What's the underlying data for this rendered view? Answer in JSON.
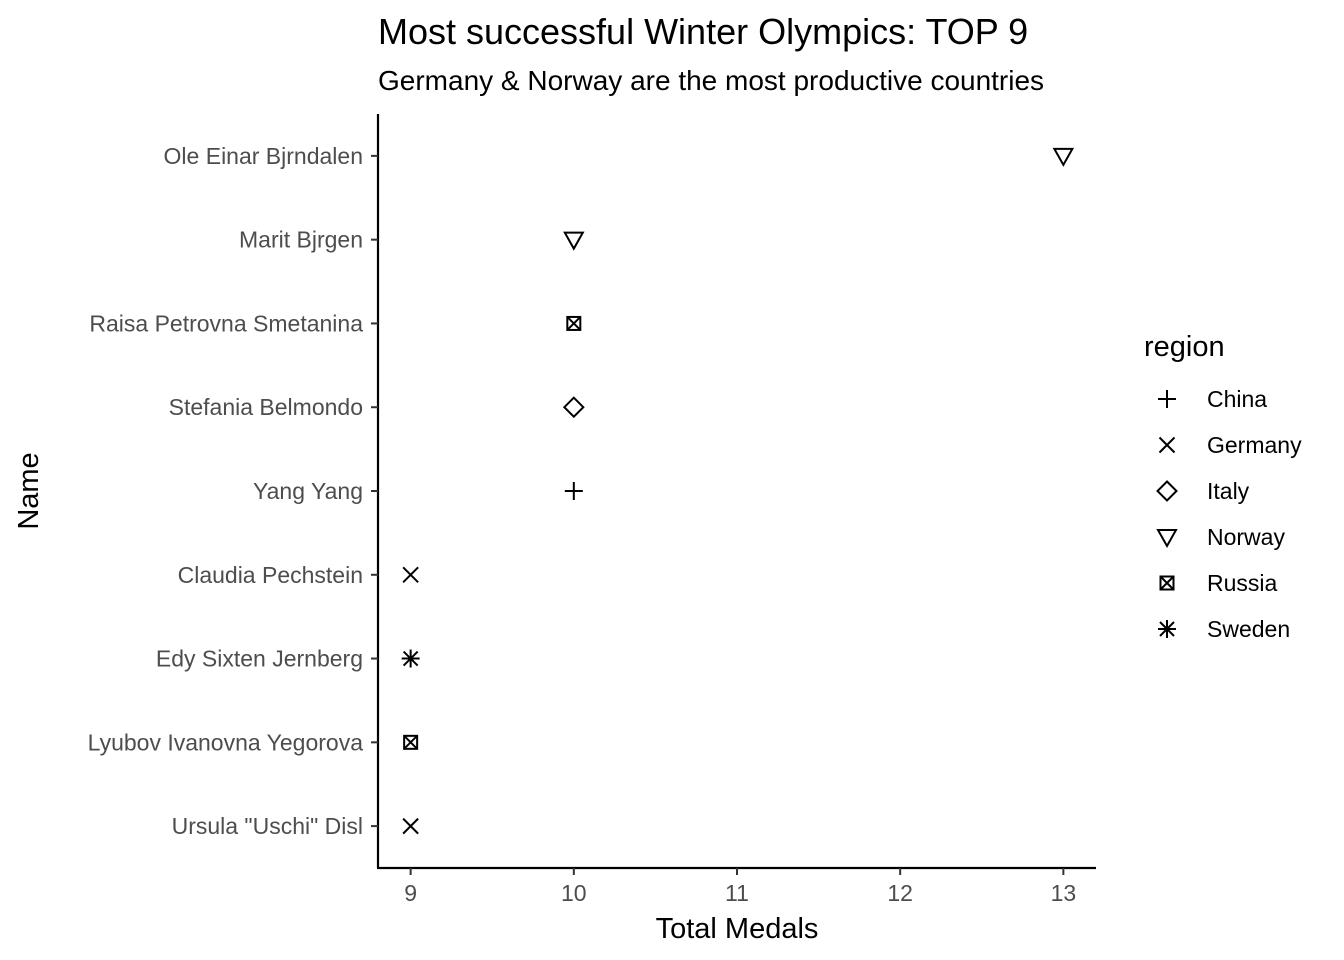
{
  "chart_data": {
    "type": "scatter",
    "title": "Most successful Winter Olympics: TOP 9",
    "subtitle": "Germany & Norway are the most productive countries",
    "xlabel": "Total Medals",
    "ylabel": "Name",
    "xlim": [
      8.8,
      13.2
    ],
    "x_ticks": [
      9,
      10,
      11,
      12,
      13
    ],
    "grid": false,
    "legend": {
      "title": "region",
      "placement": "right",
      "entries": [
        {
          "label": "China",
          "shape": "plus"
        },
        {
          "label": "Germany",
          "shape": "cross"
        },
        {
          "label": "Italy",
          "shape": "diamond"
        },
        {
          "label": "Norway",
          "shape": "triangle-down"
        },
        {
          "label": "Russia",
          "shape": "square-x"
        },
        {
          "label": "Sweden",
          "shape": "asterisk"
        }
      ]
    },
    "categories": [
      "Ole Einar Bjrndalen",
      "Marit Bjrgen",
      "Raisa Petrovna Smetanina",
      "Stefania Belmondo",
      "Yang Yang",
      "Claudia Pechstein",
      "Edy Sixten Jernberg",
      "Lyubov Ivanovna Yegorova",
      "Ursula \"Uschi\" Disl"
    ],
    "points": [
      {
        "name": "Ole Einar Bjrndalen",
        "medals": 13,
        "region": "Norway"
      },
      {
        "name": "Marit Bjrgen",
        "medals": 10,
        "region": "Norway"
      },
      {
        "name": "Raisa Petrovna Smetanina",
        "medals": 10,
        "region": "Russia"
      },
      {
        "name": "Stefania Belmondo",
        "medals": 10,
        "region": "Italy"
      },
      {
        "name": "Yang Yang",
        "medals": 10,
        "region": "China"
      },
      {
        "name": "Claudia Pechstein",
        "medals": 9,
        "region": "Germany"
      },
      {
        "name": "Edy Sixten Jernberg",
        "medals": 9,
        "region": "Sweden"
      },
      {
        "name": "Lyubov Ivanovna Yegorova",
        "medals": 9,
        "region": "Russia"
      },
      {
        "name": "Ursula \"Uschi\" Disl",
        "medals": 9,
        "region": "Germany"
      }
    ]
  }
}
